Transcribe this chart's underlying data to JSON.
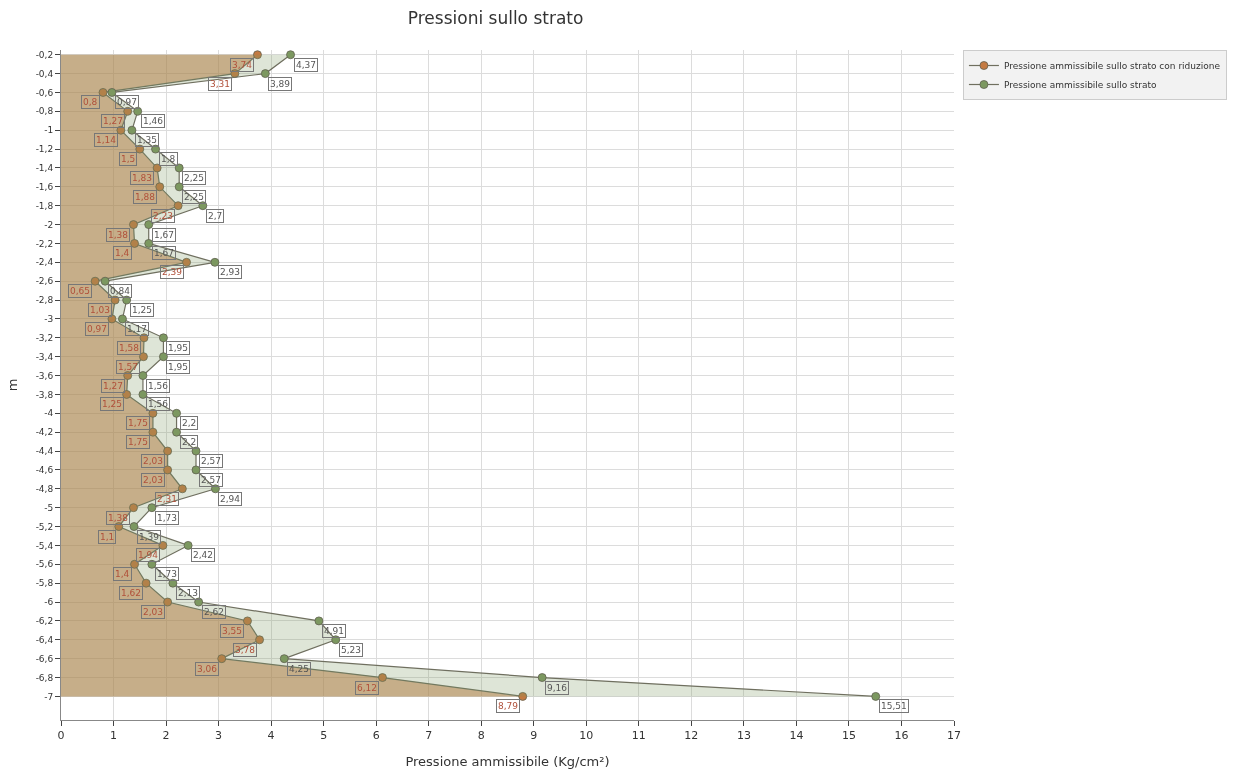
{
  "chart_data": {
    "type": "area",
    "orientation": "horizontal",
    "title": "Pressioni sullo strato",
    "xlabel": "Pressione ammissibile (Kg/cm²)",
    "ylabel": "m",
    "x": [
      -0.2,
      -0.4,
      -0.6,
      -0.8,
      -1.0,
      -1.2,
      -1.4,
      -1.6,
      -1.8,
      -2.0,
      -2.2,
      -2.4,
      -2.6,
      -2.8,
      -3.0,
      -3.2,
      -3.4,
      -3.6,
      -3.8,
      -4.0,
      -4.2,
      -4.4,
      -4.6,
      -4.8,
      -5.0,
      -5.2,
      -5.4,
      -5.6,
      -5.8,
      -6.0,
      -6.2,
      -6.4,
      -6.6,
      -6.8,
      -7.0
    ],
    "series": [
      {
        "name": "Pressione ammissibile sullo strato con riduzione",
        "color": "#c47a42",
        "values": [
          3.74,
          3.31,
          0.8,
          1.27,
          1.14,
          1.5,
          1.83,
          1.88,
          2.23,
          1.38,
          1.4,
          2.39,
          0.65,
          1.03,
          0.97,
          1.58,
          1.57,
          1.27,
          1.25,
          1.75,
          1.75,
          2.03,
          2.03,
          2.31,
          1.38,
          1.1,
          1.94,
          1.4,
          1.62,
          2.03,
          3.55,
          3.78,
          3.06,
          6.12,
          8.79
        ],
        "value_labels": [
          "3,74",
          "3,31",
          "0,8",
          "1,27",
          "1,14",
          "1,5",
          "1,83",
          "1,88",
          "2,23",
          "1,38",
          "1,4",
          "2,39",
          "0,65",
          "1,03",
          "0,97",
          "1,58",
          "1,57",
          "1,27",
          "1,25",
          "1,75",
          "1,75",
          "2,03",
          "2,03",
          "2,31",
          "1,38",
          "1,1",
          "1,94",
          "1,4",
          "1,62",
          "2,03",
          "3,55",
          "3,78",
          "3,06",
          "6,12",
          "8,79"
        ]
      },
      {
        "name": "Pressione ammissibile sullo strato",
        "color": "#7c9860",
        "values": [
          4.37,
          3.89,
          0.97,
          1.46,
          1.35,
          1.8,
          2.25,
          2.25,
          2.7,
          1.67,
          1.67,
          2.93,
          0.84,
          1.25,
          1.17,
          1.95,
          1.95,
          1.56,
          1.56,
          2.2,
          2.2,
          2.57,
          2.57,
          2.94,
          1.73,
          1.39,
          2.42,
          1.73,
          2.13,
          2.62,
          4.91,
          5.23,
          4.25,
          9.16,
          15.51
        ],
        "value_labels": [
          "4,37",
          "3,89",
          "0,97",
          "1,46",
          "1,35",
          "1,8",
          "2,25",
          "2,25",
          "2,7",
          "1,67",
          "1,67",
          "2,93",
          "0,84",
          "1,25",
          "1,17",
          "1,95",
          "1,95",
          "1,56",
          "1,56",
          "2,2",
          "2,2",
          "2,57",
          "2,57",
          "2,94",
          "1,73",
          "1,39",
          "2,42",
          "1,73",
          "2,13",
          "2,62",
          "4,91",
          "5,23",
          "4,25",
          "9,16",
          "15,51"
        ]
      }
    ],
    "xlim": [
      0,
      17
    ],
    "xticks": [
      0,
      1,
      2,
      3,
      4,
      5,
      6,
      7,
      8,
      9,
      10,
      11,
      12,
      13,
      14,
      15,
      16,
      17
    ],
    "ylim": [
      -7.25,
      -0.15
    ],
    "yticks": [
      {
        "value": -0.2,
        "label": "-0,2"
      },
      {
        "value": -0.4,
        "label": "-0,4"
      },
      {
        "value": -0.6,
        "label": "-0,6"
      },
      {
        "value": -0.8,
        "label": "-0,8"
      },
      {
        "value": -1,
        "label": "-1"
      },
      {
        "value": -1.2,
        "label": "-1,2"
      },
      {
        "value": -1.4,
        "label": "-1,4"
      },
      {
        "value": -1.6,
        "label": "-1,6"
      },
      {
        "value": -1.8,
        "label": "-1,8"
      },
      {
        "value": -2,
        "label": "-2"
      },
      {
        "value": -2.2,
        "label": "-2,2"
      },
      {
        "value": -2.4,
        "label": "-2,4"
      },
      {
        "value": -2.6,
        "label": "-2,6"
      },
      {
        "value": -2.8,
        "label": "-2,8"
      },
      {
        "value": -3,
        "label": "-3"
      },
      {
        "value": -3.2,
        "label": "-3,2"
      },
      {
        "value": -3.4,
        "label": "-3,4"
      },
      {
        "value": -3.6,
        "label": "-3,6"
      },
      {
        "value": -3.8,
        "label": "-3,8"
      },
      {
        "value": -4,
        "label": "-4"
      },
      {
        "value": -4.2,
        "label": "-4,2"
      },
      {
        "value": -4.4,
        "label": "-4,4"
      },
      {
        "value": -4.6,
        "label": "-4,6"
      },
      {
        "value": -4.8,
        "label": "-4,8"
      },
      {
        "value": -5,
        "label": "-5"
      },
      {
        "value": -5.2,
        "label": "-5,2"
      },
      {
        "value": -5.4,
        "label": "-5,4"
      },
      {
        "value": -5.6,
        "label": "-5,6"
      },
      {
        "value": -5.8,
        "label": "-5,8"
      },
      {
        "value": -6,
        "label": "-6"
      },
      {
        "value": -6.2,
        "label": "-6,2"
      },
      {
        "value": -6.4,
        "label": "-6,4"
      },
      {
        "value": -6.6,
        "label": "-6,6"
      },
      {
        "value": -6.8,
        "label": "-6,8"
      },
      {
        "value": -7,
        "label": "-7"
      }
    ],
    "grid": true,
    "legend": "top right",
    "marker": "circle",
    "line_style": "solid"
  }
}
